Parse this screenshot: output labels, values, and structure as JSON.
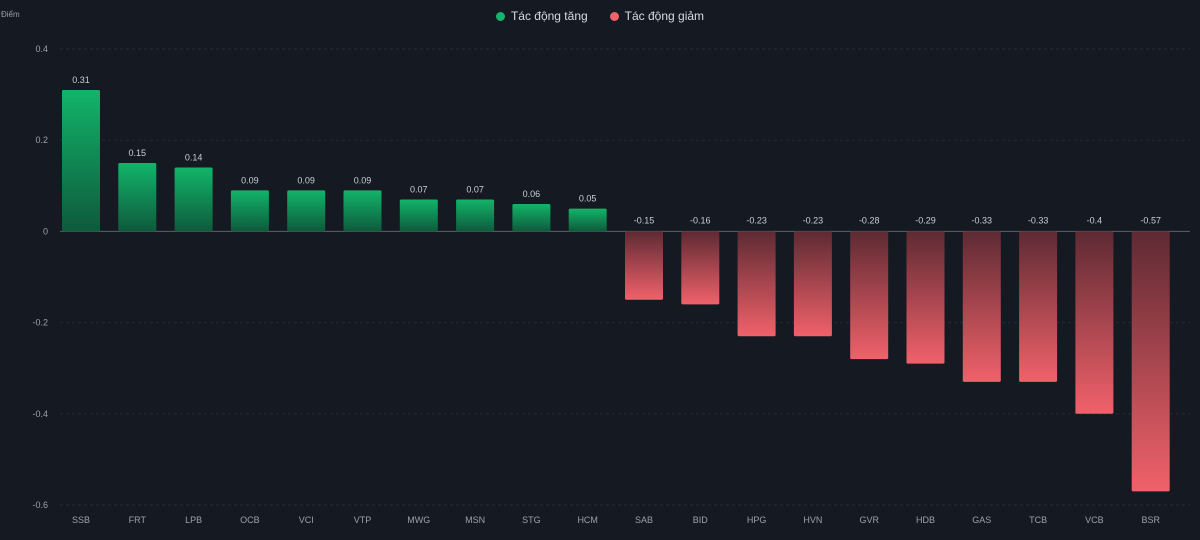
{
  "chart_data": {
    "type": "bar",
    "ylabel": "Điểm",
    "ylim": [
      -0.6,
      0.4
    ],
    "yticks": [
      "0.4",
      "0.2",
      "0",
      "-0.2",
      "-0.4",
      "-0.6"
    ],
    "ytick_values": [
      0.4,
      0.2,
      0,
      -0.2,
      -0.4,
      -0.6
    ],
    "grid": true,
    "legend_position": "top-center",
    "categories": [
      "SSB",
      "FRT",
      "LPB",
      "OCB",
      "VCI",
      "VTP",
      "MWG",
      "MSN",
      "STG",
      "HCM",
      "SAB",
      "BID",
      "HPG",
      "HVN",
      "GVR",
      "HDB",
      "GAS",
      "TCB",
      "VCB",
      "BSR"
    ],
    "values": [
      0.31,
      0.15,
      0.14,
      0.09,
      0.09,
      0.09,
      0.07,
      0.07,
      0.06,
      0.05,
      -0.15,
      -0.16,
      -0.23,
      -0.23,
      -0.28,
      -0.29,
      -0.33,
      -0.33,
      -0.4,
      -0.57
    ],
    "series": [
      {
        "name": "Tác động tăng",
        "color": "#16b36a"
      },
      {
        "name": "Tác động giảm",
        "color": "#f0616a"
      }
    ]
  },
  "colors": {
    "background": "#151a22",
    "positive_top": "#12b46a",
    "positive_bottom": "#0e5a3b",
    "negative_top": "#5e2a33",
    "negative_bottom": "#f0616a"
  }
}
